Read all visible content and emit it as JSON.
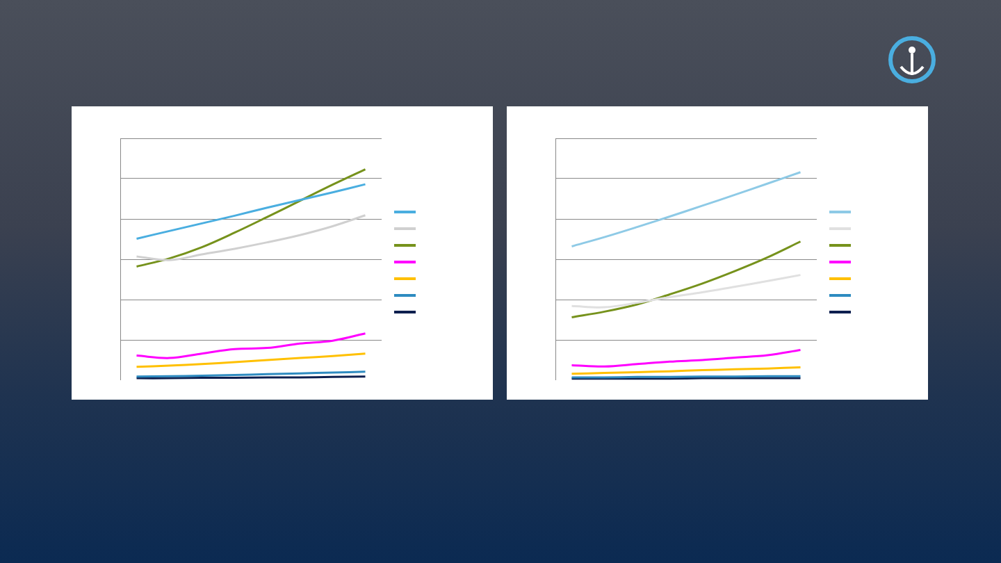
{
  "chart_data": [
    {
      "type": "line",
      "categories": [
        null,
        null,
        null,
        null,
        null,
        null,
        null,
        null
      ],
      "ylim": [
        0,
        6
      ],
      "yticks": [
        0,
        1,
        2,
        3,
        4,
        5,
        6
      ],
      "grid": true,
      "tick_labels": false,
      "legend": "right",
      "series": [
        {
          "color": "#4aaee0",
          "values": [
            3.51,
            3.7,
            3.89,
            4.08,
            4.28,
            4.47,
            4.66,
            4.86
          ]
        },
        {
          "color": "#d0d0d0",
          "values": [
            3.07,
            2.98,
            3.12,
            3.26,
            3.42,
            3.6,
            3.82,
            4.09
          ]
        },
        {
          "color": "#76921c",
          "values": [
            2.82,
            3.02,
            3.3,
            3.66,
            4.05,
            4.45,
            4.85,
            5.23
          ]
        },
        {
          "color": "#ff00ff",
          "values": [
            0.61,
            0.55,
            0.66,
            0.77,
            0.8,
            0.91,
            0.98,
            1.16
          ]
        },
        {
          "color": "#ffc000",
          "values": [
            0.33,
            0.36,
            0.4,
            0.45,
            0.5,
            0.55,
            0.6,
            0.66
          ]
        },
        {
          "color": "#2e8bc0",
          "values": [
            0.09,
            0.1,
            0.11,
            0.13,
            0.15,
            0.17,
            0.19,
            0.21
          ]
        },
        {
          "color": "#0d1f4f",
          "values": [
            0.05,
            0.05,
            0.06,
            0.06,
            0.07,
            0.07,
            0.08,
            0.09
          ]
        }
      ]
    },
    {
      "type": "line",
      "categories": [
        null,
        null,
        null,
        null,
        null,
        null,
        null,
        null
      ],
      "ylim": [
        0,
        6
      ],
      "yticks": [
        0,
        1,
        2,
        3,
        4,
        5,
        6
      ],
      "grid": true,
      "tick_labels": false,
      "legend": "right",
      "series": [
        {
          "color": "#8ecae6",
          "values": [
            3.32,
            3.55,
            3.8,
            4.06,
            4.33,
            4.6,
            4.88,
            5.16
          ]
        },
        {
          "color": "#e0e0e0",
          "values": [
            1.84,
            1.81,
            1.92,
            2.06,
            2.18,
            2.32,
            2.46,
            2.61
          ]
        },
        {
          "color": "#76921c",
          "values": [
            1.56,
            1.7,
            1.88,
            2.13,
            2.4,
            2.71,
            3.05,
            3.44
          ]
        },
        {
          "color": "#ff00ff",
          "values": [
            0.37,
            0.34,
            0.4,
            0.46,
            0.5,
            0.56,
            0.62,
            0.75
          ]
        },
        {
          "color": "#ffc000",
          "values": [
            0.16,
            0.18,
            0.2,
            0.22,
            0.25,
            0.27,
            0.29,
            0.32
          ]
        },
        {
          "color": "#2e8bc0",
          "values": [
            0.07,
            0.07,
            0.08,
            0.08,
            0.09,
            0.09,
            0.1,
            0.1
          ]
        },
        {
          "color": "#0d1f4f",
          "values": [
            0.04,
            0.04,
            0.04,
            0.04,
            0.05,
            0.05,
            0.05,
            0.05
          ]
        }
      ]
    }
  ]
}
